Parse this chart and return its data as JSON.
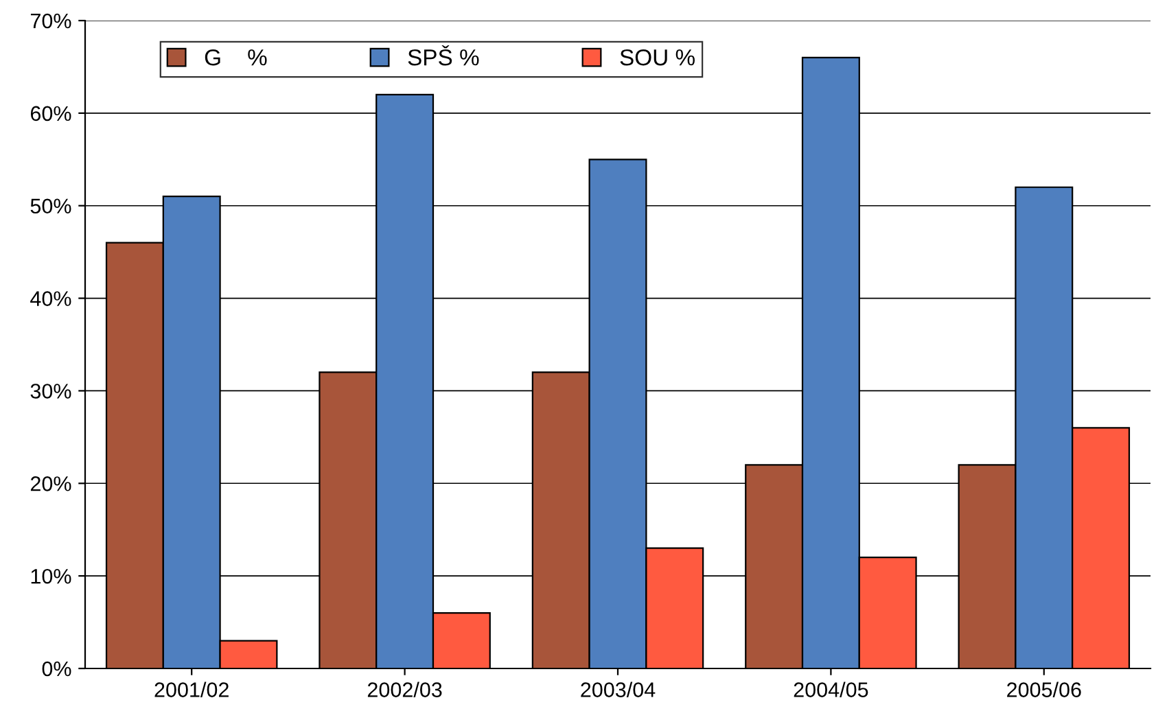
{
  "chart_data": {
    "type": "bar",
    "categories": [
      "2001/02",
      "2002/03",
      "2003/04",
      "2004/05",
      "2005/06"
    ],
    "series": [
      {
        "name": "G    %",
        "color": "#a8553a",
        "values": [
          46,
          32,
          32,
          22,
          22
        ]
      },
      {
        "name": "SPŠ %",
        "color": "#4f7fbf",
        "values": [
          51,
          62,
          55,
          66,
          52
        ]
      },
      {
        "name": "SOU %",
        "color": "#ff5a40",
        "values": [
          3,
          6,
          13,
          12,
          26
        ]
      }
    ],
    "ylim": [
      0,
      70
    ],
    "yticks": [
      {
        "value": 0,
        "label": "0%"
      },
      {
        "value": 10,
        "label": "10%"
      },
      {
        "value": 20,
        "label": "20%"
      },
      {
        "value": 30,
        "label": "30%"
      },
      {
        "value": 40,
        "label": "40%"
      },
      {
        "value": 50,
        "label": "50%"
      },
      {
        "value": 60,
        "label": "60%"
      },
      {
        "value": 70,
        "label": "70%"
      }
    ],
    "grid": "y",
    "legend": "top"
  }
}
